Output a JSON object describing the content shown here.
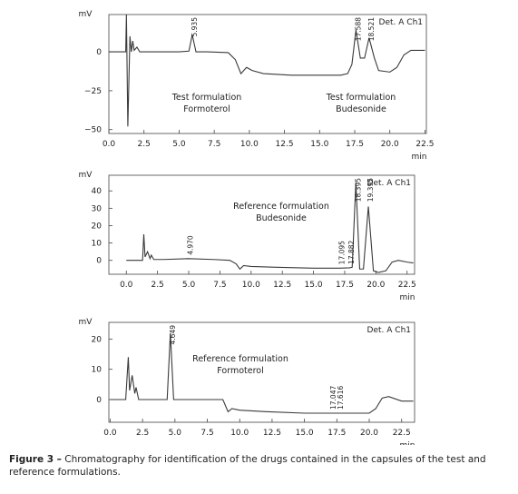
{
  "chart_data": [
    {
      "type": "line",
      "y_label": "mV",
      "x_label": "min",
      "xlim": [
        0,
        22.6
      ],
      "ylim": [
        -52.5,
        24
      ],
      "xticks": [
        {
          "value": 0,
          "label": "0.0"
        },
        2.5,
        {
          "value": 5,
          "label": "5.0"
        },
        7.5,
        {
          "value": 10,
          "label": "10.0"
        },
        12.5,
        {
          "value": 15,
          "label": "15.0"
        },
        17.5,
        {
          "value": 20,
          "label": "20.0"
        },
        22.5
      ],
      "yticks": [
        0,
        {
          "value": -25,
          "label": "−25"
        },
        {
          "value": -50,
          "label": "−50"
        }
      ],
      "series": [
        {
          "name": "Det. A Ch1",
          "color": "#3a3a3a",
          "x": [
            0,
            1.0,
            1.2,
            1.25,
            1.35,
            1.5,
            1.6,
            1.7,
            1.8,
            2.0,
            2.2,
            3,
            5,
            5.7,
            5.935,
            6.2,
            7,
            8.5,
            9,
            9.4,
            9.8,
            10.2,
            11,
            13,
            15,
            16.5,
            17,
            17.3,
            17.588,
            17.9,
            18.2,
            18.521,
            18.9,
            19.2,
            20,
            20.5,
            21,
            21.5,
            22.5
          ],
          "values": [
            0,
            0,
            0,
            24,
            -48,
            10,
            0,
            7,
            1,
            3,
            0,
            0,
            0,
            0.5,
            11,
            0,
            0,
            -0.5,
            -5,
            -14,
            -10,
            -12,
            -14,
            -15,
            -15,
            -15,
            -14,
            -8,
            14,
            -4,
            -4,
            9,
            -4,
            -12,
            -13,
            -10,
            -2,
            1,
            1
          ]
        }
      ],
      "peaks": [
        {
          "value": 5.935,
          "label": "5.935"
        },
        {
          "value": 17.588,
          "label": "17.588"
        },
        {
          "value": 18.521,
          "label": "18.521"
        }
      ],
      "annotations": [
        [
          "Test formulation",
          "Formoterol"
        ],
        [
          "Test formulation",
          "Budesonide"
        ]
      ]
    },
    {
      "type": "line",
      "y_label": "mV",
      "x_label": "min",
      "xlim": [
        -1.4,
        23.1
      ],
      "ylim": [
        -8,
        49
      ],
      "xticks": [
        {
          "value": 0,
          "label": "0.0"
        },
        2.5,
        {
          "value": 5,
          "label": "5.0"
        },
        7.5,
        {
          "value": 10,
          "label": "10.0"
        },
        12.5,
        {
          "value": 15,
          "label": "15.0"
        },
        17.5,
        {
          "value": 20,
          "label": "20.0"
        },
        22.5
      ],
      "yticks": [
        0,
        10,
        20,
        30,
        40
      ],
      "series": [
        {
          "name": "Det. A Ch1",
          "color": "#3a3a3a",
          "x": [
            0,
            1.3,
            1.4,
            1.5,
            1.7,
            1.9,
            2,
            2.2,
            3,
            4.97,
            7,
            8.3,
            8.8,
            9.1,
            9.4,
            10,
            12,
            15,
            17.095,
            17.882,
            18.1,
            18.395,
            18.7,
            19,
            19.395,
            19.8,
            20.2,
            20.8,
            21.3,
            21.8,
            22.5,
            23
          ],
          "values": [
            0,
            0,
            15,
            2,
            5,
            1,
            3,
            0.5,
            0.5,
            1,
            0.5,
            0,
            -2,
            -5,
            -3,
            -3.5,
            -4,
            -4.5,
            -4.5,
            -4.3,
            -4,
            45,
            -5,
            -5,
            31,
            -6,
            -7,
            -6,
            -1,
            0,
            -1,
            -1.5
          ]
        }
      ],
      "peaks": [
        {
          "value": 4.97,
          "label": "4.970"
        },
        {
          "value": 17.095,
          "label": "17.095"
        },
        {
          "value": 17.882,
          "label": "17.882"
        },
        {
          "value": 18.395,
          "label": "18.395"
        },
        {
          "value": 19.395,
          "label": "19.395"
        }
      ],
      "annotations": [
        [
          "Reference formulation",
          "Budesonide"
        ]
      ]
    },
    {
      "type": "line",
      "y_label": "mV",
      "x_label": "min",
      "xlim": [
        -0.1,
        23.5
      ],
      "ylim": [
        -7.5,
        25.5
      ],
      "xticks": [
        {
          "value": 0,
          "label": "0.0"
        },
        2.5,
        {
          "value": 5,
          "label": "5.0"
        },
        7.5,
        {
          "value": 10,
          "label": "10.0"
        },
        12.5,
        {
          "value": 15,
          "label": "15.0"
        },
        17.5,
        {
          "value": 20,
          "label": "20.0"
        },
        22.5
      ],
      "yticks": [
        0,
        10,
        20
      ],
      "series": [
        {
          "name": "Det. A Ch1",
          "color": "#3a3a3a",
          "x": [
            0,
            1.2,
            1.4,
            1.5,
            1.7,
            1.9,
            2,
            2.2,
            3,
            4.4,
            4.649,
            4.9,
            6,
            8.7,
            9.1,
            9.4,
            10,
            12,
            15,
            17.047,
            17.616,
            20,
            20.5,
            21,
            21.5,
            22.5,
            23.4
          ],
          "values": [
            0,
            0,
            14,
            3,
            8,
            2,
            4,
            0,
            0,
            0,
            22,
            0,
            0,
            0,
            -4,
            -3,
            -3.5,
            -4,
            -4.5,
            -4.5,
            -4.5,
            -4.5,
            -3,
            0.5,
            1,
            -0.5,
            -0.5
          ]
        }
      ],
      "peaks": [
        {
          "value": 4.649,
          "label": "4.649"
        },
        {
          "value": 17.047,
          "label": "17.047"
        },
        {
          "value": 17.616,
          "label": "17.616"
        }
      ],
      "annotations": [
        [
          "Reference formulation",
          "Formoterol"
        ]
      ]
    }
  ],
  "caption": {
    "label": "Figure 3 –",
    "text": "Chromatography for identification of the drugs contained in the capsules of the test and reference formulations."
  }
}
